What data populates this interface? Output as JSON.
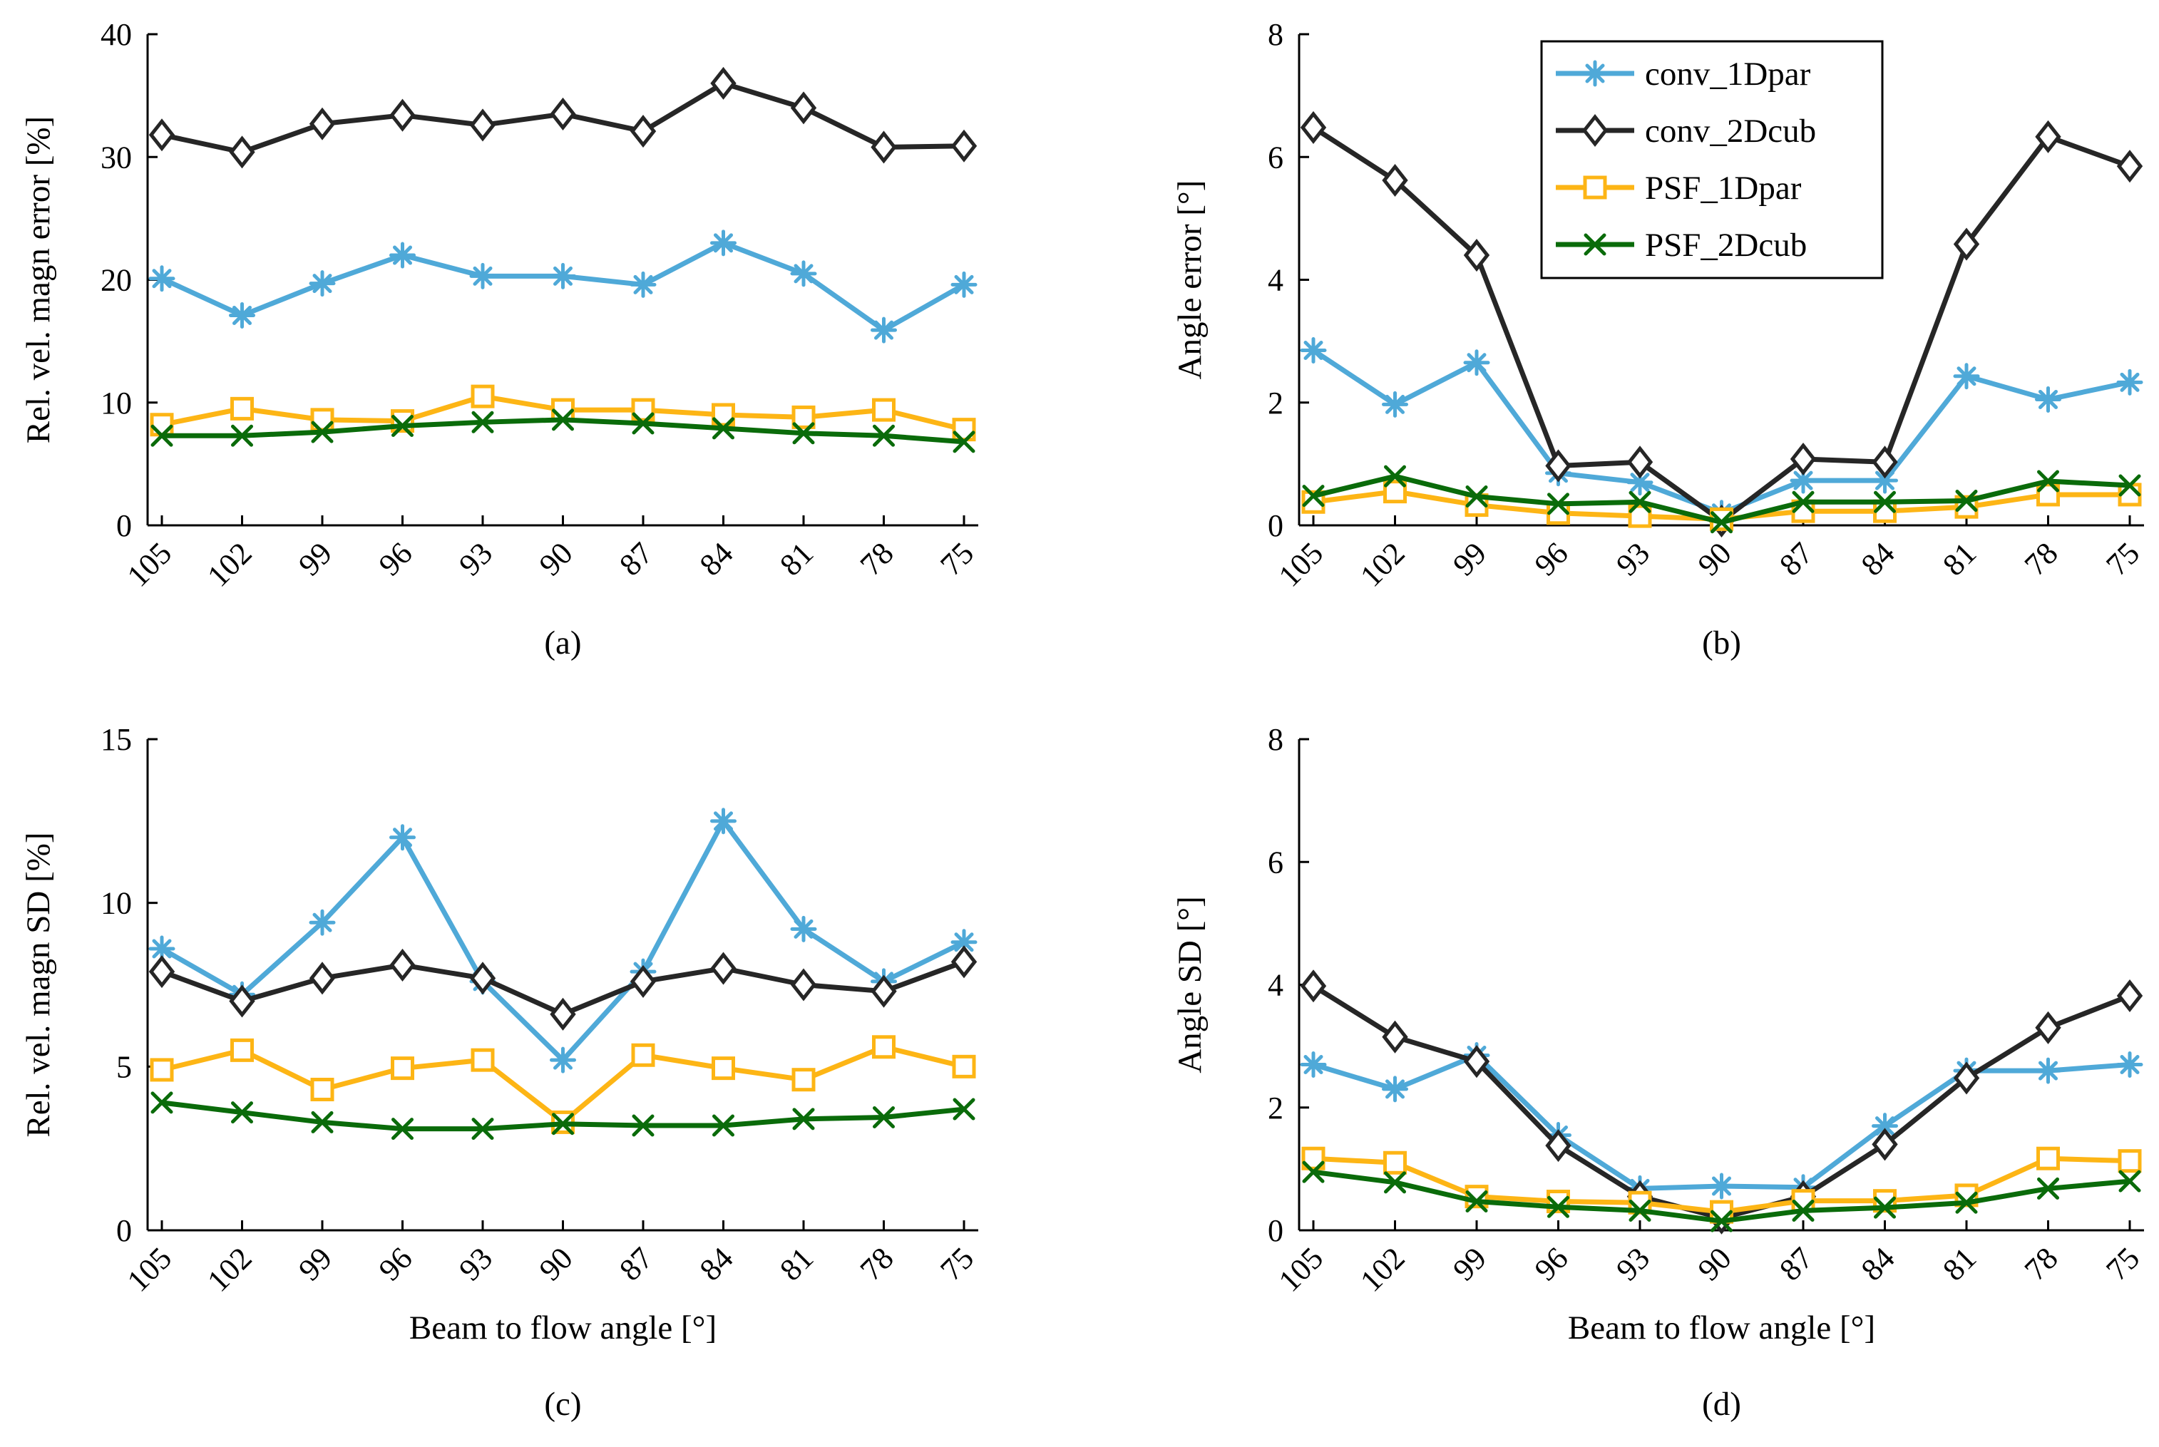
{
  "chart_data": [
    {
      "type": "line",
      "caption": "(a)",
      "xlabel": "",
      "ylabel": "Rel. vel. magn error [%]",
      "categories": [
        "105",
        "102",
        "99",
        "96",
        "93",
        "90",
        "87",
        "84",
        "81",
        "78",
        "75"
      ],
      "ylim": [
        0,
        40
      ],
      "yticks": [
        0,
        10,
        20,
        30,
        40
      ],
      "legend": null,
      "series": [
        {
          "name": "conv_1Dpar",
          "color": "#4fa9d8",
          "marker": "asterisk",
          "values": [
            20.1,
            17.1,
            19.7,
            22.0,
            20.3,
            20.3,
            19.6,
            23.0,
            20.5,
            15.9,
            19.6
          ]
        },
        {
          "name": "conv_2Dcub",
          "color": "#262626",
          "marker": "diamond",
          "values": [
            31.8,
            30.4,
            32.7,
            33.4,
            32.6,
            33.5,
            32.1,
            36.0,
            34.0,
            30.8,
            30.9
          ]
        },
        {
          "name": "PSF_1Dpar",
          "color": "#fdb515",
          "marker": "square",
          "values": [
            8.2,
            9.5,
            8.6,
            8.5,
            10.5,
            9.4,
            9.4,
            9.0,
            8.8,
            9.4,
            7.8
          ]
        },
        {
          "name": "PSF_2Dcub",
          "color": "#0a6b0a",
          "marker": "x",
          "values": [
            7.3,
            7.3,
            7.6,
            8.1,
            8.4,
            8.6,
            8.3,
            7.9,
            7.5,
            7.3,
            6.8
          ]
        }
      ]
    },
    {
      "type": "line",
      "caption": "(b)",
      "xlabel": "",
      "ylabel": "Angle error [°]",
      "categories": [
        "105",
        "102",
        "99",
        "96",
        "93",
        "90",
        "87",
        "84",
        "81",
        "78",
        "75"
      ],
      "ylim": [
        0,
        8
      ],
      "yticks": [
        0,
        2,
        4,
        6,
        8
      ],
      "legend": "top-center",
      "series": [
        {
          "name": "conv_1Dpar",
          "color": "#4fa9d8",
          "marker": "asterisk",
          "values": [
            2.85,
            1.97,
            2.65,
            0.85,
            0.7,
            0.2,
            0.73,
            0.73,
            2.43,
            2.05,
            2.33
          ]
        },
        {
          "name": "conv_2Dcub",
          "color": "#262626",
          "marker": "diamond",
          "values": [
            6.48,
            5.62,
            4.4,
            0.97,
            1.03,
            0.07,
            1.08,
            1.03,
            4.58,
            6.33,
            5.85
          ]
        },
        {
          "name": "PSF_1Dpar",
          "color": "#fdb515",
          "marker": "square",
          "values": [
            0.38,
            0.55,
            0.33,
            0.2,
            0.15,
            0.1,
            0.23,
            0.23,
            0.3,
            0.5,
            0.5
          ]
        },
        {
          "name": "PSF_2Dcub",
          "color": "#0a6b0a",
          "marker": "x",
          "values": [
            0.48,
            0.8,
            0.47,
            0.35,
            0.38,
            0.05,
            0.38,
            0.38,
            0.4,
            0.72,
            0.65
          ]
        }
      ]
    },
    {
      "type": "line",
      "caption": "(c)",
      "xlabel": "Beam to flow angle [°]",
      "ylabel": "Rel. vel. magn SD [%]",
      "categories": [
        "105",
        "102",
        "99",
        "96",
        "93",
        "90",
        "87",
        "84",
        "81",
        "78",
        "75"
      ],
      "ylim": [
        0,
        15
      ],
      "yticks": [
        0,
        5,
        10,
        15
      ],
      "legend": null,
      "series": [
        {
          "name": "conv_1Dpar",
          "color": "#4fa9d8",
          "marker": "asterisk",
          "values": [
            8.6,
            7.2,
            9.4,
            12.0,
            7.6,
            5.2,
            7.9,
            12.5,
            9.2,
            7.6,
            8.8
          ]
        },
        {
          "name": "conv_2Dcub",
          "color": "#262626",
          "marker": "diamond",
          "values": [
            7.9,
            7.0,
            7.7,
            8.1,
            7.7,
            6.6,
            7.6,
            8.0,
            7.5,
            7.3,
            8.2
          ]
        },
        {
          "name": "PSF_1Dpar",
          "color": "#fdb515",
          "marker": "square",
          "values": [
            4.9,
            5.5,
            4.3,
            4.95,
            5.2,
            3.3,
            5.35,
            4.95,
            4.6,
            5.6,
            5.0
          ]
        },
        {
          "name": "PSF_2Dcub",
          "color": "#0a6b0a",
          "marker": "x",
          "values": [
            3.9,
            3.6,
            3.3,
            3.1,
            3.1,
            3.25,
            3.2,
            3.2,
            3.4,
            3.45,
            3.7
          ]
        }
      ]
    },
    {
      "type": "line",
      "caption": "(d)",
      "xlabel": "Beam to flow angle [°]",
      "ylabel": "Angle SD [°]",
      "categories": [
        "105",
        "102",
        "99",
        "96",
        "93",
        "90",
        "87",
        "84",
        "81",
        "78",
        "75"
      ],
      "ylim": [
        0,
        8
      ],
      "yticks": [
        0,
        2,
        4,
        6,
        8
      ],
      "legend": null,
      "series": [
        {
          "name": "conv_1Dpar",
          "color": "#4fa9d8",
          "marker": "asterisk",
          "values": [
            2.7,
            2.3,
            2.85,
            1.55,
            0.68,
            0.72,
            0.7,
            1.7,
            2.6,
            2.6,
            2.7
          ]
        },
        {
          "name": "conv_2Dcub",
          "color": "#262626",
          "marker": "diamond",
          "values": [
            3.98,
            3.15,
            2.75,
            1.38,
            0.55,
            0.2,
            0.55,
            1.4,
            2.48,
            3.3,
            3.82
          ]
        },
        {
          "name": "PSF_1Dpar",
          "color": "#fdb515",
          "marker": "square",
          "values": [
            1.17,
            1.1,
            0.55,
            0.47,
            0.45,
            0.3,
            0.48,
            0.48,
            0.57,
            1.17,
            1.13
          ]
        },
        {
          "name": "PSF_2Dcub",
          "color": "#0a6b0a",
          "marker": "x",
          "values": [
            0.95,
            0.78,
            0.47,
            0.38,
            0.32,
            0.15,
            0.32,
            0.37,
            0.45,
            0.68,
            0.8
          ]
        }
      ]
    }
  ]
}
